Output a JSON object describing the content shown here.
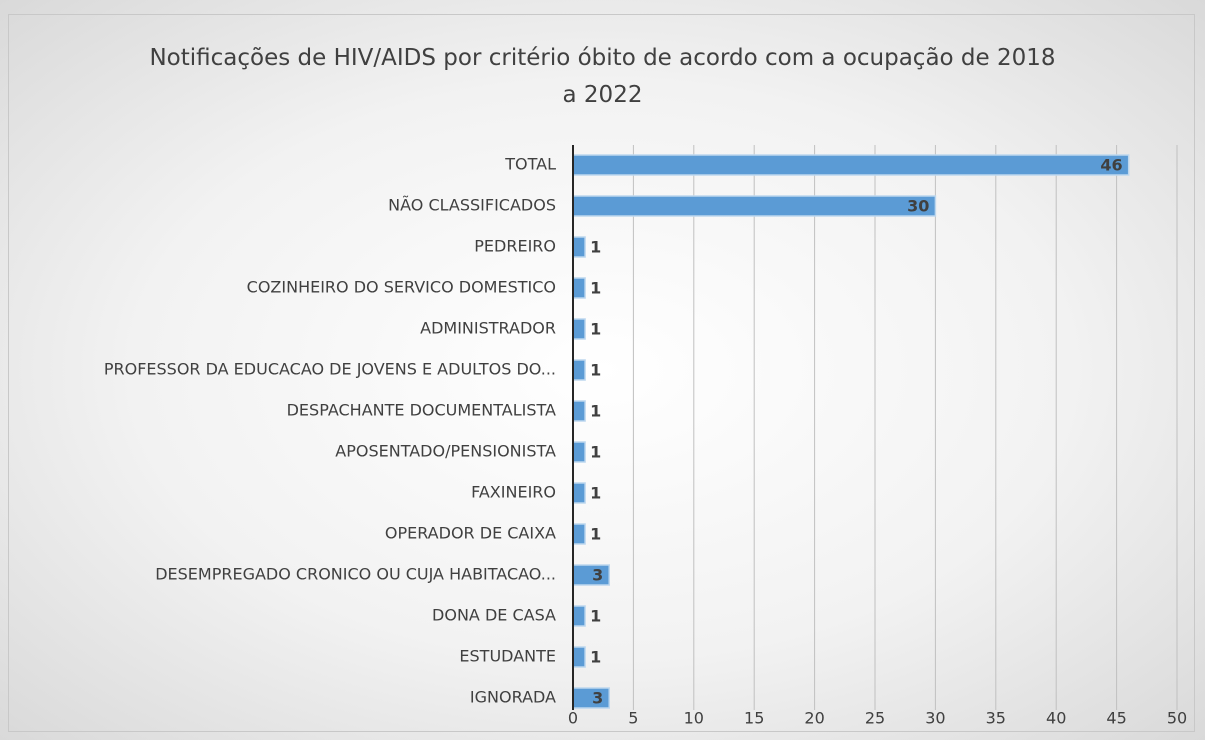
{
  "chart_data": {
    "type": "bar",
    "orientation": "horizontal",
    "title": "Notificações de HIV/AIDS por critério óbito de acordo com a ocupação de 2018 a 2022",
    "categories": [
      "TOTAL",
      "NÃO CLASSIFICADOS",
      "PEDREIRO",
      "COZINHEIRO DO SERVICO DOMESTICO",
      "ADMINISTRADOR",
      "PROFESSOR DA EDUCACAO DE JOVENS E ADULTOS DO...",
      "DESPACHANTE DOCUMENTALISTA",
      "APOSENTADO/PENSIONISTA",
      "FAXINEIRO",
      "OPERADOR DE CAIXA",
      "DESEMPREGADO CRONICO OU CUJA HABITACAO...",
      "DONA DE CASA",
      "ESTUDANTE",
      "IGNORADA"
    ],
    "values": [
      46,
      30,
      1,
      1,
      1,
      1,
      1,
      1,
      1,
      1,
      3,
      1,
      1,
      3
    ],
    "color": "#5b9bd5",
    "xlim": [
      0,
      50
    ],
    "xticks": [
      0,
      5,
      10,
      15,
      20,
      25,
      30,
      35,
      40,
      45,
      50
    ],
    "grid": true
  }
}
